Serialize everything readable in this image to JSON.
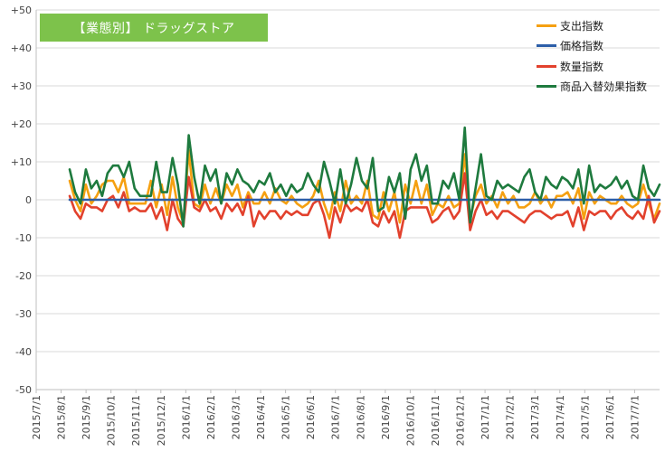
{
  "chart_data": {
    "type": "line",
    "title": "【業態別】 ドラッグストア",
    "title_background": "#7dc24b",
    "ylim": [
      -50,
      50
    ],
    "yticks": [
      "+50",
      "+40",
      "+30",
      "+20",
      "+10",
      "0",
      "-10",
      "-20",
      "-30",
      "-40",
      "-50"
    ],
    "xlabels": [
      "2015/7/1",
      "2015/8/1",
      "2015/9/1",
      "2015/10/1",
      "2015/11/1",
      "2015/12/1",
      "2016/1/1",
      "2016/2/1",
      "2016/3/1",
      "2016/4/1",
      "2016/5/1",
      "2016/6/1",
      "2016/7/1",
      "2016/8/1",
      "2016/9/1",
      "2016/10/1",
      "2016/11/1",
      "2016/12/1",
      "2017/1/1",
      "2017/2/1",
      "2017/3/1",
      "2017/4/1",
      "2017/5/1",
      "2017/6/1",
      "2017/7/1"
    ],
    "legend_position": "top-right",
    "grid": true,
    "series": [
      {
        "name": "支出指数",
        "color": "#f5a011",
        "values": [
          5,
          0,
          -3,
          4,
          -1,
          1,
          4,
          5,
          5,
          2,
          6,
          -1,
          -1,
          -1,
          -1,
          5,
          -2,
          4,
          -4,
          6,
          -2,
          -6,
          13,
          -1,
          -2,
          4,
          -1,
          3,
          -1,
          4,
          1,
          4,
          -2,
          2,
          -1,
          -1,
          2,
          -1,
          3,
          0,
          -1,
          1,
          -1,
          -2,
          -1,
          1,
          5,
          -1,
          -5,
          2,
          -3,
          5,
          -1,
          1,
          -1,
          5,
          -4,
          -5,
          2,
          -3,
          2,
          -6,
          4,
          -1,
          5,
          -1,
          4,
          -4,
          -1,
          -2,
          1,
          -2,
          -1,
          12,
          -5,
          1,
          4,
          -1,
          1,
          -2,
          2,
          -1,
          1,
          -2,
          -2,
          -1,
          2,
          -1,
          1,
          -2,
          1,
          1,
          2,
          -1,
          3,
          -5,
          2,
          -1,
          1,
          0,
          -1,
          -1,
          1,
          -1,
          -2,
          -1,
          4,
          -1,
          -5,
          -1
        ]
      },
      {
        "name": "価格指数",
        "color": "#2c5ea8",
        "values": [
          0,
          0,
          0,
          0,
          0,
          0,
          0,
          0,
          0,
          0,
          0,
          0,
          0,
          0,
          0,
          0,
          0,
          0,
          0,
          0,
          0,
          0,
          0,
          0,
          0,
          0,
          0,
          0,
          0,
          0,
          0,
          0,
          0,
          0,
          0,
          0,
          0,
          0,
          0,
          0,
          0,
          0,
          0,
          0,
          0,
          0,
          0,
          0,
          0,
          0,
          0,
          0,
          0,
          0,
          0,
          0,
          0,
          0,
          0,
          0,
          0,
          0,
          0,
          0,
          0,
          0,
          0,
          0,
          0,
          0,
          0,
          0,
          0,
          0,
          0,
          0,
          0,
          0,
          0,
          0,
          0,
          0,
          0,
          0,
          0,
          0,
          0,
          0,
          0,
          0,
          0,
          0,
          0,
          0,
          0,
          0,
          0,
          0,
          0,
          0,
          0,
          0,
          0,
          0,
          0,
          0,
          0,
          0,
          0,
          0
        ]
      },
      {
        "name": "数量指数",
        "color": "#e2412d",
        "values": [
          1,
          -3,
          -5,
          -1,
          -2,
          -2,
          -3,
          0,
          1,
          -2,
          2,
          -3,
          -2,
          -3,
          -3,
          -1,
          -5,
          -2,
          -8,
          0,
          -5,
          -7,
          6,
          -2,
          -3,
          0,
          -3,
          -2,
          -5,
          -1,
          -3,
          -1,
          -4,
          1,
          -7,
          -3,
          -5,
          -3,
          -3,
          -5,
          -3,
          -4,
          -3,
          -4,
          -4,
          -1,
          0,
          -4,
          -10,
          -2,
          -6,
          -1,
          -3,
          -2,
          -3,
          0,
          -6,
          -7,
          -3,
          -6,
          -3,
          -10,
          -3,
          -2,
          -2,
          -2,
          -2,
          -6,
          -5,
          -3,
          -2,
          -5,
          -3,
          7,
          -8,
          -3,
          0,
          -4,
          -3,
          -5,
          -3,
          -3,
          -4,
          -5,
          -6,
          -4,
          -3,
          -3,
          -4,
          -5,
          -4,
          -4,
          -3,
          -7,
          -2,
          -8,
          -3,
          -4,
          -3,
          -3,
          -5,
          -3,
          -2,
          -4,
          -5,
          -3,
          -5,
          1,
          -6,
          -3
        ]
      },
      {
        "name": "商品入替効果指数",
        "color": "#1e7a3e",
        "values": [
          8,
          2,
          -1,
          8,
          3,
          5,
          1,
          7,
          9,
          9,
          6,
          10,
          3,
          1,
          1,
          1,
          10,
          2,
          2,
          11,
          4,
          -7,
          17,
          6,
          -1,
          9,
          5,
          8,
          -1,
          7,
          4,
          8,
          5,
          4,
          2,
          5,
          4,
          7,
          2,
          4,
          1,
          4,
          2,
          3,
          7,
          4,
          2,
          10,
          5,
          -1,
          8,
          -1,
          4,
          11,
          5,
          3,
          11,
          -3,
          -2,
          6,
          2,
          7,
          -5,
          8,
          12,
          5,
          9,
          -1,
          -1,
          5,
          3,
          7,
          0,
          19,
          -6,
          3,
          12,
          1,
          0,
          5,
          3,
          4,
          3,
          2,
          6,
          8,
          2,
          0,
          6,
          4,
          3,
          6,
          5,
          3,
          8,
          -1,
          9,
          2,
          4,
          3,
          4,
          6,
          3,
          5,
          1,
          0,
          9,
          3,
          1,
          4
        ]
      }
    ]
  }
}
